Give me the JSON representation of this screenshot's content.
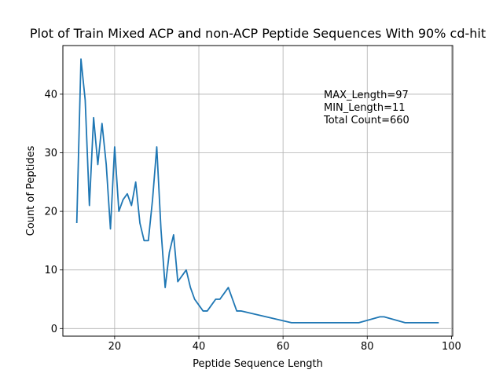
{
  "chart_data": {
    "type": "line",
    "title": "Plot of Train Mixed ACP and non-ACP Peptide Sequences With 90% cd-hit",
    "xlabel": "Peptide Sequence Length",
    "ylabel": "Count of Peptides",
    "xlim": [
      7.7,
      100.3
    ],
    "ylim": [
      -1.3,
      48.3
    ],
    "xticks": [
      20,
      40,
      60,
      80,
      100
    ],
    "yticks": [
      0,
      10,
      20,
      30,
      40
    ],
    "grid": true,
    "annotations": [
      "MAX_Length=97",
      "MIN_Length=11",
      "Total Count=660"
    ],
    "series": [
      {
        "color": "#1f77b4",
        "x": [
          11,
          12,
          13,
          14,
          15,
          16,
          17,
          18,
          19,
          20,
          21,
          22,
          23,
          24,
          25,
          26,
          27,
          28,
          29,
          30,
          31,
          32,
          33,
          34,
          35,
          36,
          37,
          38,
          39,
          40,
          41,
          42,
          43,
          44,
          45,
          46,
          47,
          48,
          49,
          50,
          62,
          78,
          83,
          84,
          89,
          97
        ],
        "y": [
          18,
          46,
          39,
          21,
          36,
          28,
          35,
          28,
          17,
          31,
          20,
          22,
          23,
          21,
          25,
          18,
          15,
          15,
          22,
          31,
          17,
          7,
          13,
          16,
          8,
          9,
          10,
          7,
          5,
          4,
          3,
          3,
          4,
          5,
          5,
          6,
          7,
          5,
          3,
          3,
          1,
          1,
          2,
          2,
          1,
          1
        ]
      }
    ]
  }
}
